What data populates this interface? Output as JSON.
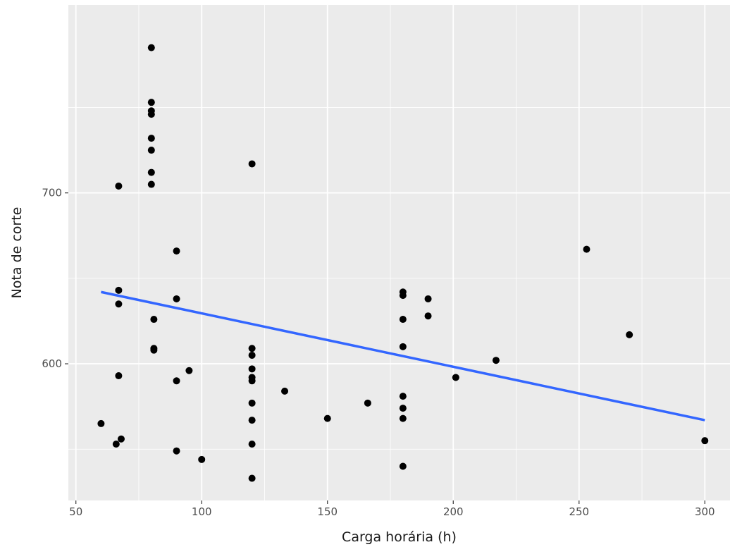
{
  "chart_data": {
    "type": "scatter",
    "title": "",
    "xlabel": "Carga horária (h)",
    "ylabel": "Nota de corte",
    "xlim": [
      47,
      310
    ],
    "ylim": [
      520,
      810
    ],
    "x_ticks": [
      50,
      100,
      150,
      200,
      250,
      300
    ],
    "y_ticks": [
      600,
      700
    ],
    "grid": true,
    "legend": "none",
    "colors": {
      "panel": "#ebebeb",
      "grid": "#ffffff",
      "points": "#000000",
      "trend": "#3366ff",
      "tick_text": "#4d4d4d"
    },
    "points": [
      {
        "x": 60,
        "y": 565
      },
      {
        "x": 66,
        "y": 553
      },
      {
        "x": 67,
        "y": 704
      },
      {
        "x": 67,
        "y": 643
      },
      {
        "x": 67,
        "y": 635
      },
      {
        "x": 67,
        "y": 593
      },
      {
        "x": 68,
        "y": 556
      },
      {
        "x": 80,
        "y": 785
      },
      {
        "x": 80,
        "y": 753
      },
      {
        "x": 80,
        "y": 748
      },
      {
        "x": 80,
        "y": 746
      },
      {
        "x": 80,
        "y": 732
      },
      {
        "x": 80,
        "y": 725
      },
      {
        "x": 80,
        "y": 712
      },
      {
        "x": 80,
        "y": 705
      },
      {
        "x": 81,
        "y": 626
      },
      {
        "x": 81,
        "y": 609
      },
      {
        "x": 81,
        "y": 608
      },
      {
        "x": 90,
        "y": 666
      },
      {
        "x": 90,
        "y": 638
      },
      {
        "x": 90,
        "y": 590
      },
      {
        "x": 90,
        "y": 549
      },
      {
        "x": 95,
        "y": 596
      },
      {
        "x": 100,
        "y": 544
      },
      {
        "x": 120,
        "y": 717
      },
      {
        "x": 120,
        "y": 609
      },
      {
        "x": 120,
        "y": 605
      },
      {
        "x": 120,
        "y": 597
      },
      {
        "x": 120,
        "y": 592
      },
      {
        "x": 120,
        "y": 590
      },
      {
        "x": 120,
        "y": 577
      },
      {
        "x": 120,
        "y": 567
      },
      {
        "x": 120,
        "y": 553
      },
      {
        "x": 120,
        "y": 533
      },
      {
        "x": 133,
        "y": 584
      },
      {
        "x": 150,
        "y": 568
      },
      {
        "x": 166,
        "y": 577
      },
      {
        "x": 180,
        "y": 642
      },
      {
        "x": 180,
        "y": 640
      },
      {
        "x": 180,
        "y": 626
      },
      {
        "x": 180,
        "y": 610
      },
      {
        "x": 180,
        "y": 581
      },
      {
        "x": 180,
        "y": 574
      },
      {
        "x": 180,
        "y": 568
      },
      {
        "x": 180,
        "y": 540
      },
      {
        "x": 190,
        "y": 638
      },
      {
        "x": 190,
        "y": 628
      },
      {
        "x": 201,
        "y": 592
      },
      {
        "x": 217,
        "y": 602
      },
      {
        "x": 253,
        "y": 667
      },
      {
        "x": 270,
        "y": 617
      },
      {
        "x": 300,
        "y": 555
      }
    ],
    "trend_line": {
      "x": [
        60,
        300
      ],
      "y": [
        642,
        567
      ]
    }
  }
}
